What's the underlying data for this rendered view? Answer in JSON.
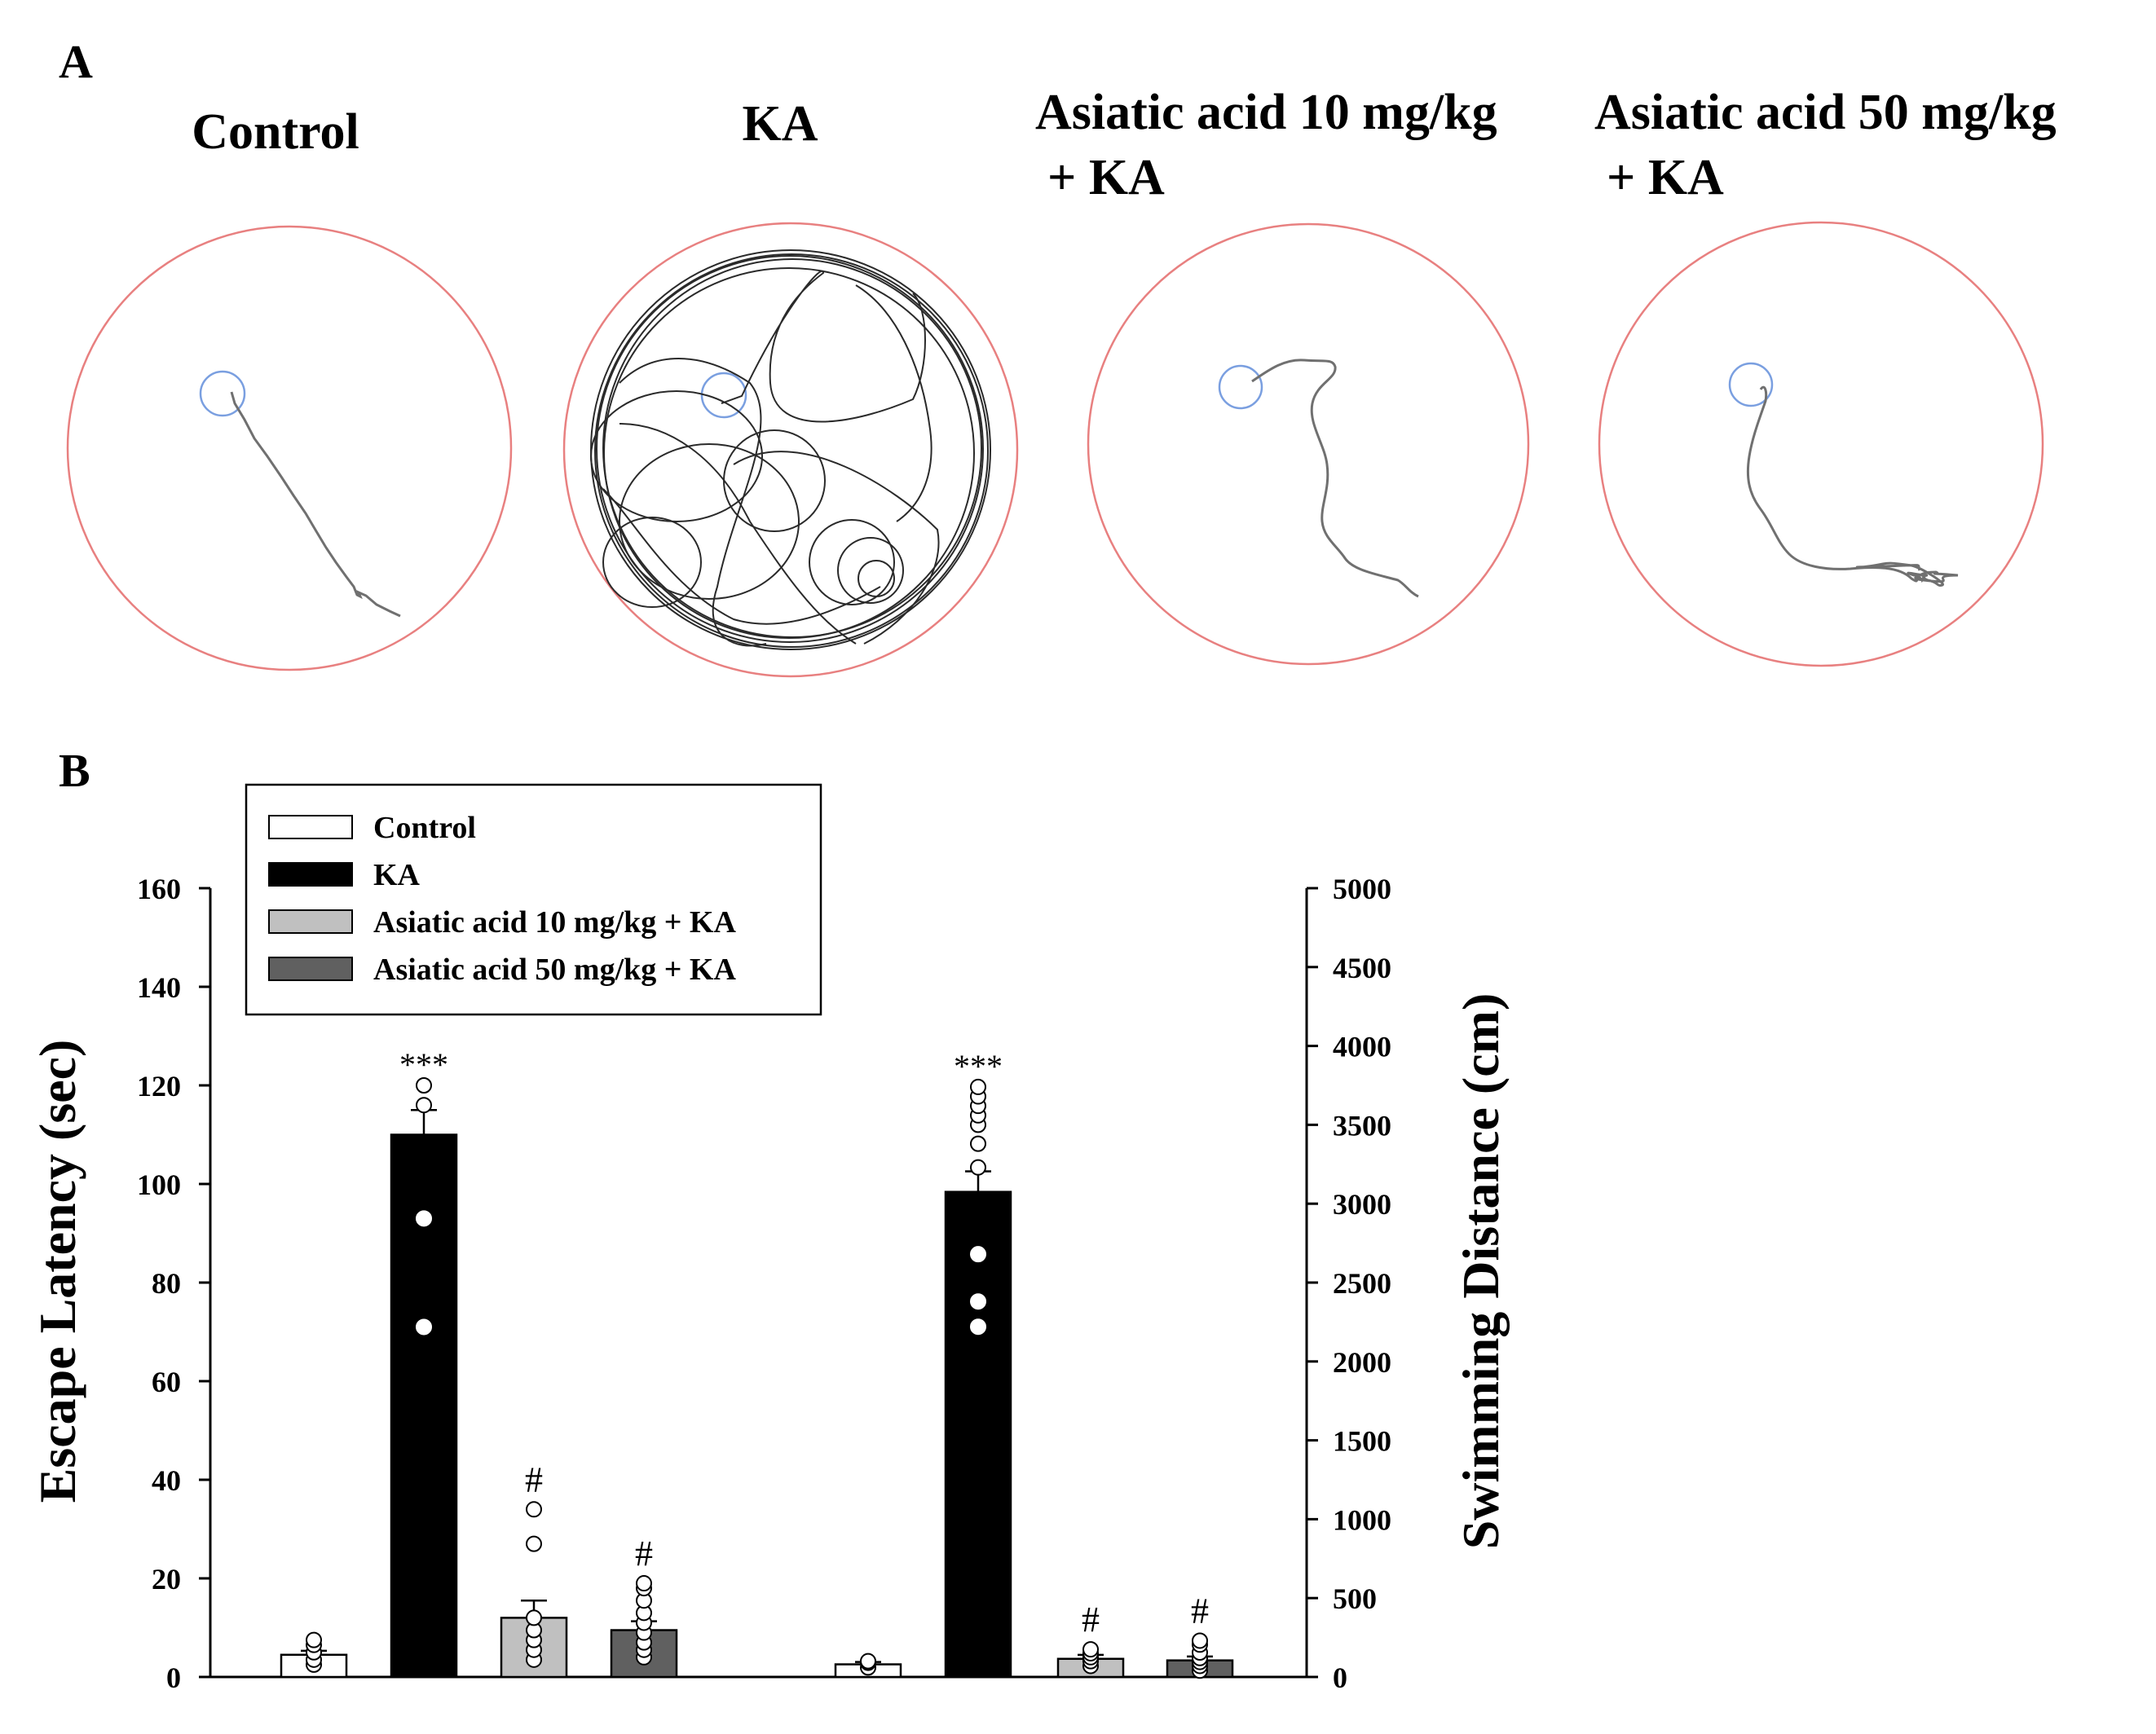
{
  "panel_a": {
    "label": "A",
    "mazes": [
      {
        "title_line1": "Control",
        "title_line2": ""
      },
      {
        "title_line1": "KA",
        "title_line2": ""
      },
      {
        "title_line1": "Asiatic acid 10 mg/kg",
        "title_line2": "+ KA"
      },
      {
        "title_line1": "Asiatic acid 50 mg/kg",
        "title_line2": "+ KA"
      }
    ],
    "colors": {
      "pool": "#e88080",
      "platform": "#7a9fe0",
      "path": "#707070",
      "ka_path": "#2a2a2a"
    }
  },
  "panel_b": {
    "label": "B"
  },
  "chart_data": {
    "type": "bar",
    "title": "",
    "ylabel": "Escape Latency (sec)",
    "y2label": "Swimming Distance (cm)",
    "ylim": [
      0,
      160
    ],
    "y2lim": [
      0,
      5000
    ],
    "yticks": [
      "0",
      "20",
      "40",
      "60",
      "80",
      "100",
      "120",
      "140",
      "160"
    ],
    "y2ticks": [
      "0",
      "500",
      "1000",
      "1500",
      "2000",
      "2500",
      "3000",
      "3500",
      "4000",
      "4500",
      "5000"
    ],
    "legend_position": "top-left",
    "series": [
      {
        "name": "Control",
        "color": "#ffffff"
      },
      {
        "name": "KA",
        "color": "#000000"
      },
      {
        "name": "Asiatic acid 10 mg/kg + KA",
        "color": "#c0c0c0"
      },
      {
        "name": "Asiatic acid 50 mg/kg + KA",
        "color": "#606060"
      }
    ],
    "groups": [
      {
        "axis": "left",
        "bars": [
          {
            "series": 0,
            "value": 4.5,
            "error": 0.8,
            "annotation": "",
            "points": [
              2.5,
              3.5,
              5,
              6.5,
              7.5
            ]
          },
          {
            "series": 1,
            "value": 110,
            "error": 5,
            "annotation": "***",
            "points": [
              71,
              93,
              116,
              120
            ]
          },
          {
            "series": 2,
            "value": 12,
            "error": 3.5,
            "annotation": "#",
            "points": [
              3.5,
              5.5,
              7.5,
              9.5,
              12,
              27,
              34
            ]
          },
          {
            "series": 3,
            "value": 9.5,
            "error": 1.8,
            "annotation": "#",
            "points": [
              4,
              5.5,
              7,
              9,
              11,
              13,
              15.5,
              18,
              19
            ]
          }
        ]
      },
      {
        "axis": "right",
        "bars": [
          {
            "series": 0,
            "value": 80,
            "error": 15,
            "annotation": "",
            "points": [
              60,
              90,
              100
            ]
          },
          {
            "series": 1,
            "value": 3075,
            "error": 130,
            "annotation": "***",
            "points": [
              2220,
              2380,
              2680,
              3230,
              3380,
              3500,
              3560,
              3620,
              3680,
              3740
            ]
          },
          {
            "series": 2,
            "value": 115,
            "error": 25,
            "annotation": "#",
            "points": [
              70,
              100,
              125,
              150,
              175
            ]
          },
          {
            "series": 3,
            "value": 105,
            "error": 25,
            "annotation": "#",
            "points": [
              40,
              70,
              95,
              120,
              155,
              205,
              230
            ]
          }
        ]
      }
    ]
  }
}
